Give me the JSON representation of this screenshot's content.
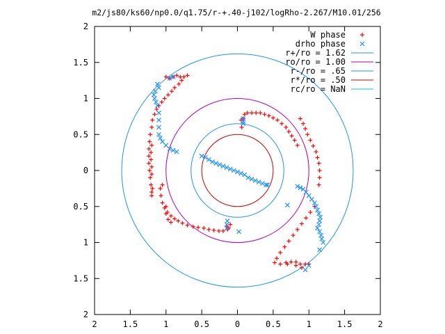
{
  "chart_data": {
    "type": "scatter",
    "title": "m2/js80/ks60/np0.0/q1.75/r-+.40-j102/logRho-2.267/M10.01/256",
    "xlabel": "",
    "ylabel": "",
    "xlim": [
      -2,
      2
    ],
    "ylim": [
      -2,
      2
    ],
    "x_tick_labels": [
      "2",
      "1.5",
      "1",
      "0.5",
      "0",
      "0.5",
      "1",
      "1.5",
      "2"
    ],
    "y_tick_labels": [
      "2",
      "1.5",
      "1",
      "0.5",
      "0",
      "0.5",
      "1",
      "1.5",
      "2"
    ],
    "grid": false,
    "legend_position": "top-right",
    "series": [
      {
        "name": "W phase",
        "marker": "plus",
        "color": "#ff0000",
        "points": [
          [
            -1.0,
            1.3
          ],
          [
            -0.95,
            1.28
          ],
          [
            -0.9,
            1.3
          ],
          [
            -0.85,
            1.32
          ],
          [
            -0.8,
            1.3
          ],
          [
            -0.75,
            1.3
          ],
          [
            -0.7,
            1.32
          ],
          [
            -0.78,
            1.25
          ],
          [
            -0.82,
            1.2
          ],
          [
            -0.88,
            1.15
          ],
          [
            -0.92,
            1.1
          ],
          [
            -0.97,
            1.05
          ],
          [
            -1.02,
            1.0
          ],
          [
            -1.06,
            0.95
          ],
          [
            -1.1,
            0.9
          ],
          [
            -1.13,
            0.85
          ],
          [
            -1.16,
            0.78
          ],
          [
            -1.19,
            0.7
          ],
          [
            -1.2,
            0.6
          ],
          [
            -1.22,
            0.5
          ],
          [
            -1.23,
            0.4
          ],
          [
            -1.24,
            0.3
          ],
          [
            -1.24,
            0.2
          ],
          [
            -1.24,
            0.1
          ],
          [
            -1.23,
            0.0
          ],
          [
            -1.22,
            -0.1
          ],
          [
            -1.21,
            -0.2
          ],
          [
            -1.2,
            -0.3
          ],
          [
            -1.05,
            -0.2
          ],
          [
            -1.08,
            -0.25
          ],
          [
            -1.07,
            -0.35
          ],
          [
            -1.05,
            -0.45
          ],
          [
            -1.02,
            -0.52
          ],
          [
            -0.98,
            -0.58
          ],
          [
            -0.93,
            -0.63
          ],
          [
            -0.88,
            -0.67
          ],
          [
            -0.83,
            -0.7
          ],
          [
            -0.77,
            -0.73
          ],
          [
            -0.7,
            -0.76
          ],
          [
            -0.62,
            -0.78
          ],
          [
            -0.55,
            -0.79
          ],
          [
            -0.47,
            -0.8
          ],
          [
            -0.4,
            -0.82
          ],
          [
            -0.33,
            -0.83
          ],
          [
            -0.26,
            -0.84
          ],
          [
            -0.2,
            -0.84
          ],
          [
            -0.12,
            -0.8
          ],
          [
            -0.1,
            -0.75
          ],
          [
            -1.0,
            -0.5
          ],
          [
            -1.0,
            -0.6
          ],
          [
            -0.97,
            -0.68
          ],
          [
            -0.93,
            -0.72
          ],
          [
            0.1,
            0.78
          ],
          [
            0.14,
            0.8
          ],
          [
            0.2,
            0.8
          ],
          [
            0.26,
            0.8
          ],
          [
            0.32,
            0.8
          ],
          [
            0.38,
            0.78
          ],
          [
            0.44,
            0.76
          ],
          [
            0.5,
            0.73
          ],
          [
            0.56,
            0.7
          ],
          [
            0.62,
            0.65
          ],
          [
            0.68,
            0.6
          ],
          [
            0.72,
            0.54
          ],
          [
            0.76,
            0.48
          ],
          [
            0.8,
            0.42
          ],
          [
            0.84,
            0.35
          ],
          [
            0.88,
            0.72
          ],
          [
            0.92,
            0.65
          ],
          [
            0.95,
            0.58
          ],
          [
            0.98,
            0.5
          ],
          [
            1.02,
            0.42
          ],
          [
            1.06,
            0.34
          ],
          [
            1.1,
            0.26
          ],
          [
            1.12,
            0.18
          ],
          [
            1.14,
            0.1
          ],
          [
            1.15,
            0.0
          ],
          [
            1.15,
            -0.1
          ],
          [
            1.14,
            -0.2
          ],
          [
            0.05,
            0.7
          ],
          [
            0.06,
            0.6
          ],
          [
            0.08,
            0.72
          ],
          [
            1.08,
            -0.5
          ],
          [
            1.02,
            -0.58
          ],
          [
            0.96,
            -0.66
          ],
          [
            0.9,
            -0.74
          ],
          [
            0.84,
            -0.82
          ],
          [
            0.78,
            -0.9
          ],
          [
            0.72,
            -0.98
          ],
          [
            0.66,
            -1.06
          ],
          [
            0.6,
            -1.14
          ],
          [
            0.55,
            -1.22
          ],
          [
            0.52,
            -1.28
          ],
          [
            0.6,
            -1.3
          ],
          [
            0.68,
            -1.28
          ],
          [
            0.75,
            -1.27
          ],
          [
            0.82,
            -1.27
          ],
          [
            0.88,
            -1.3
          ],
          [
            0.9,
            -1.35
          ],
          [
            0.95,
            -1.3
          ],
          [
            1.0,
            -1.3
          ],
          [
            0.82,
            -1.32
          ],
          [
            0.7,
            -1.3
          ],
          [
            -0.15,
            -0.78
          ],
          [
            -0.14,
            -0.82
          ],
          [
            -1.2,
            -0.35
          ],
          [
            -1.19,
            -0.25
          ],
          [
            -1.2,
            -0.05
          ],
          [
            -1.2,
            0.05
          ],
          [
            -1.21,
            0.15
          ],
          [
            -1.21,
            0.25
          ],
          [
            -1.2,
            0.35
          ]
        ]
      },
      {
        "name": "drho phase",
        "marker": "cross",
        "color": "#1e90ff",
        "points": [
          [
            -1.15,
            1.1
          ],
          [
            -1.17,
            1.05
          ],
          [
            -1.16,
            1.0
          ],
          [
            -1.14,
            0.95
          ],
          [
            -1.12,
            0.9
          ],
          [
            -1.1,
            0.8
          ],
          [
            -1.1,
            0.7
          ],
          [
            -1.1,
            0.6
          ],
          [
            -1.1,
            0.5
          ],
          [
            -1.08,
            0.45
          ],
          [
            -1.05,
            0.4
          ],
          [
            -1.0,
            0.35
          ],
          [
            -0.95,
            0.3
          ],
          [
            -0.9,
            0.28
          ],
          [
            -0.85,
            0.26
          ],
          [
            -1.1,
            1.15
          ],
          [
            -1.12,
            1.2
          ],
          [
            -0.9,
            1.3
          ],
          [
            -0.95,
            1.28
          ],
          [
            -0.5,
            0.2
          ],
          [
            -0.45,
            0.18
          ],
          [
            -0.4,
            0.15
          ],
          [
            -0.35,
            0.12
          ],
          [
            -0.3,
            0.1
          ],
          [
            -0.25,
            0.08
          ],
          [
            -0.2,
            0.06
          ],
          [
            -0.15,
            0.04
          ],
          [
            -0.1,
            0.02
          ],
          [
            -0.05,
            0.0
          ],
          [
            0.0,
            -0.02
          ],
          [
            0.05,
            -0.04
          ],
          [
            0.1,
            -0.06
          ],
          [
            0.15,
            -0.1
          ],
          [
            0.2,
            -0.12
          ],
          [
            0.25,
            -0.14
          ],
          [
            0.3,
            -0.16
          ],
          [
            0.35,
            -0.18
          ],
          [
            0.4,
            -0.2
          ],
          [
            0.42,
            -0.2
          ],
          [
            0.08,
            0.72
          ],
          [
            0.08,
            0.65
          ],
          [
            0.08,
            0.68
          ],
          [
            0.84,
            -0.22
          ],
          [
            0.88,
            -0.24
          ],
          [
            0.92,
            -0.26
          ],
          [
            0.96,
            -0.3
          ],
          [
            1.0,
            -0.35
          ],
          [
            1.04,
            -0.4
          ],
          [
            1.08,
            -0.45
          ],
          [
            1.1,
            -0.5
          ],
          [
            1.12,
            -0.55
          ],
          [
            1.14,
            -0.6
          ],
          [
            1.16,
            -0.65
          ],
          [
            1.15,
            -0.7
          ],
          [
            1.14,
            -0.75
          ],
          [
            1.12,
            -0.8
          ],
          [
            1.15,
            -0.85
          ],
          [
            1.17,
            -0.9
          ],
          [
            1.18,
            -0.95
          ],
          [
            1.2,
            -1.0
          ],
          [
            1.15,
            -1.1
          ],
          [
            0.7,
            -0.48
          ],
          [
            0.02,
            -0.85
          ],
          [
            -0.15,
            -0.8
          ],
          [
            -0.15,
            -0.75
          ],
          [
            -0.14,
            -0.7
          ],
          [
            1.0,
            -1.32
          ],
          [
            0.95,
            -1.38
          ]
        ]
      },
      {
        "name": "r+/ro = 1.62",
        "type": "circle",
        "radius": 1.62,
        "color": "#1e90ff"
      },
      {
        "name": "ro/ro = 1.00",
        "type": "circle",
        "radius": 1.0,
        "color": "#b000b0"
      },
      {
        "name": "r-/ro = .65",
        "type": "circle",
        "radius": 0.65,
        "color": "#1e90ff"
      },
      {
        "name": "r*/ro = .50",
        "type": "circle",
        "radius": 0.5,
        "color": "#cc0000"
      },
      {
        "name": "rc/ro = NaN",
        "type": "circle",
        "radius": null,
        "color": "#00cccc"
      }
    ]
  }
}
